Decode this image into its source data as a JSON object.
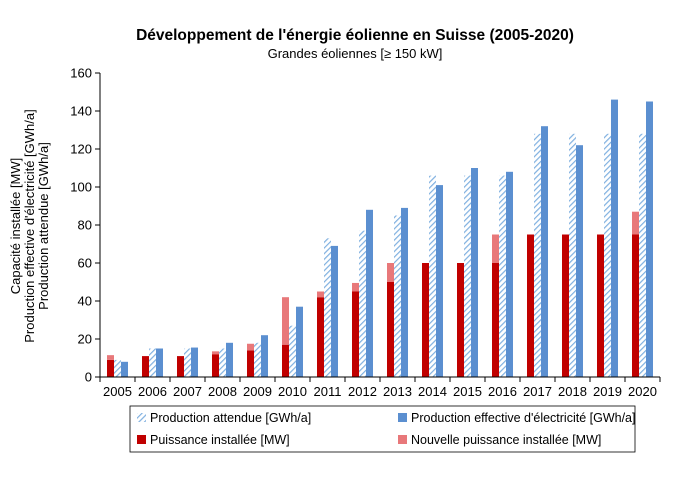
{
  "chart_data": {
    "type": "bar",
    "title": "Développement de l'énergie éolienne en Suisse (2005-2020)",
    "subtitle": "Grandes éoliennes [≥ 150 kW]",
    "ylabel_lines": [
      "Capacité installée [MW]",
      "Production effective d'électricité [GWh/a]",
      "Production attendue [GWh/a]"
    ],
    "ylim": [
      0,
      160
    ],
    "yticks": [
      0,
      20,
      40,
      60,
      80,
      100,
      120,
      140,
      160
    ],
    "grid": false,
    "legend_position": "bottom",
    "categories": [
      "2005",
      "2006",
      "2007",
      "2008",
      "2009",
      "2010",
      "2011",
      "2012",
      "2013",
      "2014",
      "2015",
      "2016",
      "2017",
      "2018",
      "2019",
      "2020"
    ],
    "series": [
      {
        "name": "Puissance installée [MW]",
        "color": "#c00000",
        "values": [
          9,
          11,
          11,
          12,
          14,
          17,
          42,
          45,
          50,
          60,
          60,
          60,
          75,
          75,
          75,
          75
        ]
      },
      {
        "name": "Nouvelle puissance installée [MW]",
        "color": "#e8787a",
        "values": [
          2.5,
          0,
          0,
          1.5,
          3.5,
          25,
          3,
          4.5,
          10,
          0,
          0,
          15,
          0,
          0,
          0,
          12
        ]
      },
      {
        "name": "Production attendue [GWh/a]",
        "color": "#9dc3e6",
        "values": [
          9,
          15,
          15,
          15,
          18,
          27,
          73,
          77,
          85,
          106,
          106,
          106,
          128,
          128,
          128,
          128
        ]
      },
      {
        "name": "Production effective d'électricité [GWh/a]",
        "color": "#5b8fd0",
        "values": [
          8,
          15,
          15.5,
          18,
          22,
          37,
          69,
          88,
          89,
          101,
          110,
          108,
          132,
          122,
          146,
          145
        ]
      }
    ]
  }
}
